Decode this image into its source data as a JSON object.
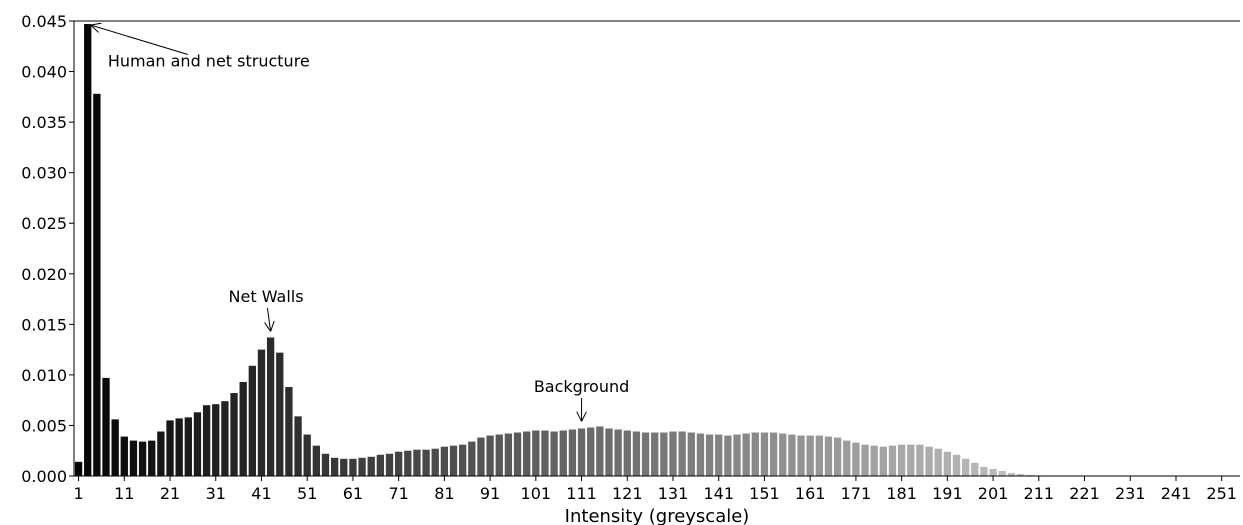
{
  "chart_data": {
    "type": "bar",
    "title": "",
    "xlabel": "Intensity (greyscale)",
    "ylabel": "",
    "bin_width": 2,
    "x_start": 1,
    "xlim": [
      0,
      255
    ],
    "ylim": [
      0,
      0.045
    ],
    "yticks": [
      "0.000",
      "0.005",
      "0.010",
      "0.015",
      "0.020",
      "0.025",
      "0.030",
      "0.035",
      "0.040",
      "0.045"
    ],
    "ytick_values": [
      0,
      0.005,
      0.01,
      0.015,
      0.02,
      0.025,
      0.03,
      0.035,
      0.04,
      0.045
    ],
    "xticks": [
      "1",
      "11",
      "21",
      "31",
      "41",
      "51",
      "61",
      "71",
      "81",
      "91",
      "101",
      "111",
      "121",
      "131",
      "141",
      "151",
      "161",
      "171",
      "181",
      "191",
      "201",
      "211",
      "221",
      "231",
      "241",
      "251"
    ],
    "xtick_values": [
      1,
      11,
      21,
      31,
      41,
      51,
      61,
      71,
      81,
      91,
      101,
      111,
      121,
      131,
      141,
      151,
      161,
      171,
      181,
      191,
      201,
      211,
      221,
      231,
      241,
      251
    ],
    "grid": false,
    "values": [
      0.0014,
      0.0447,
      0.0378,
      0.0097,
      0.0056,
      0.0039,
      0.0035,
      0.0034,
      0.0035,
      0.0044,
      0.0055,
      0.0057,
      0.0058,
      0.0063,
      0.007,
      0.0071,
      0.0074,
      0.0082,
      0.0093,
      0.0109,
      0.0125,
      0.0137,
      0.0122,
      0.0088,
      0.0059,
      0.0041,
      0.003,
      0.0022,
      0.0018,
      0.0017,
      0.0017,
      0.0018,
      0.0019,
      0.0021,
      0.0022,
      0.0024,
      0.0025,
      0.0026,
      0.0026,
      0.0027,
      0.0029,
      0.003,
      0.0031,
      0.0034,
      0.0038,
      0.004,
      0.0041,
      0.0042,
      0.0043,
      0.0044,
      0.0045,
      0.0045,
      0.0044,
      0.0045,
      0.0046,
      0.0047,
      0.0048,
      0.0049,
      0.0047,
      0.0046,
      0.0045,
      0.0044,
      0.0043,
      0.0043,
      0.0043,
      0.0044,
      0.0044,
      0.0043,
      0.0042,
      0.0041,
      0.0041,
      0.004,
      0.0041,
      0.0042,
      0.0043,
      0.0043,
      0.0043,
      0.0042,
      0.0041,
      0.004,
      0.004,
      0.004,
      0.0039,
      0.0038,
      0.0035,
      0.0033,
      0.0031,
      0.003,
      0.0029,
      0.003,
      0.0031,
      0.0031,
      0.0031,
      0.0029,
      0.0027,
      0.0024,
      0.0021,
      0.0017,
      0.0013,
      0.0009,
      0.0007,
      0.0005,
      0.0003,
      0.0002,
      0.0001,
      5e-05
    ],
    "bar_color_start": "#050505",
    "bar_color_end": "#c2c2c2",
    "annotations": [
      {
        "text": "Human and net structure",
        "target_x": 3,
        "target_y": 0.0447,
        "text_x": 7.4,
        "text_y": 0.0405,
        "arrow": "line"
      },
      {
        "text": "Net Walls",
        "target_x": 43,
        "target_y": 0.0141,
        "text_x": 42,
        "text_y": 0.0172,
        "arrow": "arrow"
      },
      {
        "text": "Background",
        "target_x": 111,
        "target_y": 0.0052,
        "text_x": 111,
        "text_y": 0.0083,
        "arrow": "arrow"
      }
    ]
  }
}
